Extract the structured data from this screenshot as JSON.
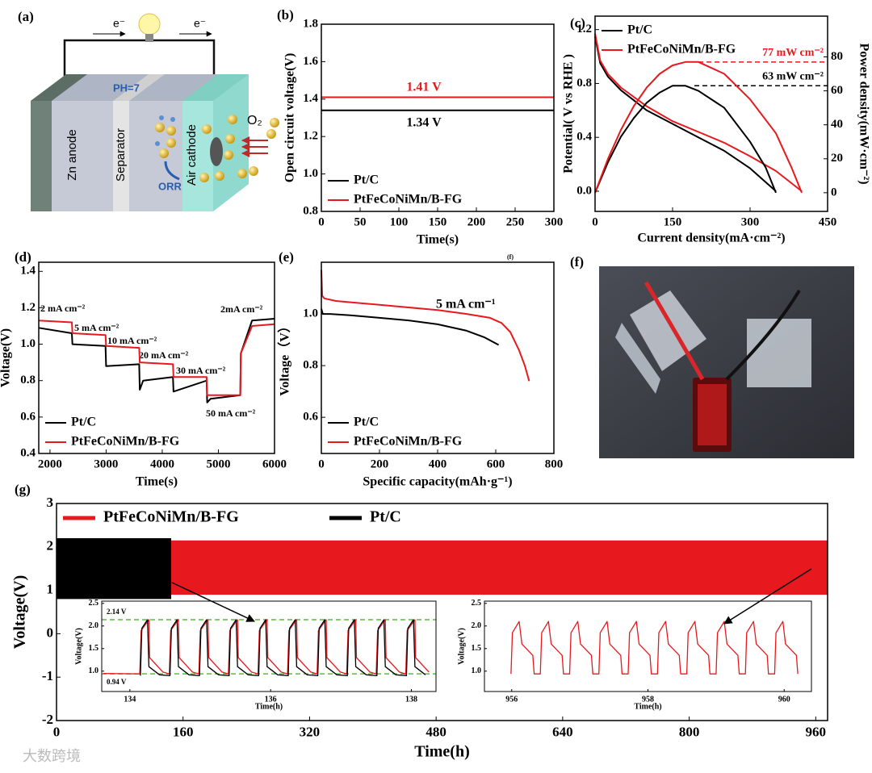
{
  "diagram": {
    "panel_label": "(a)",
    "electron_left": "e⁻",
    "electron_right": "e⁻",
    "ph": "PH=7",
    "anode": "Zn anode",
    "separator": "Separator",
    "cathode": "Air cathode",
    "reaction": "ORR",
    "gas": "O₂"
  },
  "photo": {
    "panel_label": "(f)"
  },
  "watermark": "大数跨境",
  "chart_data": [
    {
      "type": "line",
      "panel_label": "(b)",
      "x_label": "Time(s)",
      "y_label": "Open circuit voltage(V)",
      "footnote": "(f)",
      "xlim": [
        0,
        300
      ],
      "xticks": [
        0,
        50,
        100,
        150,
        200,
        250,
        300
      ],
      "ylim": [
        0.8,
        1.8
      ],
      "yticks": [
        0.8,
        {
          "value": 1,
          "label": "1.0"
        },
        1.2,
        1.4,
        1.6,
        1.8
      ],
      "legend_loc": "lower left",
      "series": [
        {
          "name": "Pt/C",
          "color": "#000000",
          "x": [
            0,
            300
          ],
          "values": [
            1.34,
            1.34
          ]
        },
        {
          "name": "PtFeCoNiMn/B-FG",
          "color": "#e8191e",
          "x": [
            0,
            300
          ],
          "values": [
            1.41,
            1.41
          ]
        }
      ],
      "annotations": [
        {
          "text": "1.41 V",
          "color": "#e8191e"
        },
        {
          "text": "1.34 V",
          "color": "#000000"
        }
      ]
    },
    {
      "type": "line",
      "panel_label": "(c)",
      "x_label": "Current density(mA·cm⁻²)",
      "y_label": "Potential( V vs RHE )",
      "y2_label": "Power density(mW·cm⁻²)",
      "xlim": [
        0,
        450
      ],
      "xticks": [
        0,
        150,
        300,
        450
      ],
      "ylim": [
        -0.15,
        1.3
      ],
      "yticks": [
        {
          "value": 0,
          "label": "0.0"
        },
        0.4,
        0.8,
        1.2
      ],
      "y2lim": [
        -11,
        104
      ],
      "y2ticks": [
        0,
        20,
        40,
        60,
        80
      ],
      "legend_loc": "upper left",
      "series": [
        {
          "name": "Pt/C",
          "color": "#000000",
          "x": [
            0,
            10,
            25,
            50,
            100,
            150,
            200,
            250,
            300,
            350
          ],
          "values": [
            1.15,
            0.95,
            0.85,
            0.75,
            0.6,
            0.5,
            0.4,
            0.3,
            0.17,
            0
          ]
        },
        {
          "name": "PtFeCoNiMn/B-FG",
          "color": "#e8191e",
          "x": [
            0,
            10,
            25,
            50,
            100,
            150,
            200,
            250,
            300,
            350,
            400
          ],
          "values": [
            1.17,
            0.97,
            0.87,
            0.77,
            0.63,
            0.52,
            0.44,
            0.36,
            0.26,
            0.15,
            0
          ]
        },
        {
          "color": "#000000",
          "axis": "y2",
          "x": [
            0,
            25,
            50,
            75,
            100,
            125,
            150,
            175,
            200,
            250,
            300,
            330,
            350
          ],
          "values": [
            0,
            18,
            33,
            44,
            53,
            59,
            63,
            63,
            60,
            50,
            30,
            15,
            0
          ]
        },
        {
          "color": "#e8191e",
          "axis": "y2",
          "x": [
            0,
            25,
            50,
            75,
            100,
            125,
            150,
            175,
            200,
            250,
            300,
            350,
            380,
            400
          ],
          "values": [
            0,
            20,
            37,
            51,
            62,
            70,
            75,
            77,
            77,
            70,
            55,
            35,
            15,
            0
          ]
        }
      ],
      "annotations": [
        {
          "value": 77,
          "label": "77 mW cm⁻²",
          "axis": "y2",
          "color": "#e8191e"
        },
        {
          "value": 63,
          "label": "63 mW cm⁻²",
          "axis": "y2",
          "color": "#000000"
        }
      ]
    },
    {
      "type": "line",
      "panel_label": "(d)",
      "x_label": "Time(s)",
      "y_label": "Voltage(V)",
      "xlim": [
        1800,
        6000
      ],
      "xticks": [
        2000,
        3000,
        4000,
        5000,
        6000
      ],
      "ylim": [
        0.4,
        1.45
      ],
      "yticks": [
        0.4,
        0.6,
        0.8,
        {
          "value": 1,
          "label": "1.0"
        },
        1.2,
        1.4
      ],
      "legend_loc": "lower left",
      "series": [
        {
          "name": "Pt/C",
          "color": "#000000",
          "x": [
            1800,
            2390,
            2400,
            2990,
            3000,
            3590,
            3600,
            3660,
            4190,
            4200,
            4790,
            4800,
            4860,
            5390,
            5400,
            5600,
            6000
          ],
          "values": [
            1.09,
            1.06,
            1.0,
            0.99,
            0.88,
            0.89,
            0.75,
            0.8,
            0.82,
            0.74,
            0.8,
            0.68,
            0.7,
            0.72,
            0.95,
            1.13,
            1.14
          ]
        },
        {
          "name": "PtFeCoNiMn/B-FG",
          "color": "#e8191e",
          "x": [
            1800,
            2390,
            2400,
            2990,
            3000,
            3590,
            3600,
            4190,
            4200,
            4790,
            4800,
            5390,
            5400,
            5600,
            6000
          ],
          "values": [
            1.13,
            1.12,
            1.06,
            1.05,
            0.99,
            0.98,
            0.9,
            0.89,
            0.82,
            0.82,
            0.72,
            0.72,
            0.95,
            1.1,
            1.11
          ]
        }
      ],
      "annotations": [
        "2 mA cm⁻²",
        "5 mA cm⁻²",
        "10 mA cm⁻²",
        "20 mA cm⁻²",
        "30 mA cm⁻²",
        "50 mA cm⁻²",
        "2mA cm⁻²"
      ]
    },
    {
      "type": "line",
      "panel_label": "(e)",
      "x_label": "Specific capacity(mAh·g⁻¹)",
      "y_label": "Voltage（V）",
      "xlim": [
        0,
        800
      ],
      "xticks": [
        0,
        200,
        400,
        600,
        800
      ],
      "ylim": [
        0.46,
        1.2
      ],
      "yticks": [
        0.6,
        0.8,
        {
          "value": 1,
          "label": "1.0"
        }
      ],
      "legend_loc": "lower left",
      "series": [
        {
          "name": "Pt/C",
          "color": "#000000",
          "x": [
            0,
            5,
            30,
            100,
            200,
            300,
            400,
            500,
            560,
            610
          ],
          "values": [
            1.02,
            1.0,
            1.0,
            0.995,
            0.985,
            0.975,
            0.96,
            0.935,
            0.91,
            0.88
          ]
        },
        {
          "name": "PtFeCoNiMn/B-FG",
          "color": "#e8191e",
          "x": [
            0,
            3,
            10,
            50,
            100,
            200,
            300,
            400,
            500,
            580,
            620,
            650,
            680,
            700,
            715
          ],
          "values": [
            1.17,
            1.07,
            1.06,
            1.05,
            1.045,
            1.035,
            1.025,
            1.015,
            1.0,
            0.985,
            0.965,
            0.93,
            0.86,
            0.8,
            0.74
          ]
        }
      ],
      "annotations": [
        "5 mA cm⁻¹"
      ]
    },
    {
      "type": "band",
      "panel_label": "(g)",
      "x_label": "Time(h)",
      "y_label": "Voltage(V)",
      "xlim": [
        0,
        975
      ],
      "xticks": [
        0,
        160,
        320,
        480,
        640,
        800,
        960
      ],
      "ylim": [
        -2,
        3
      ],
      "yticks": [
        -2,
        -1,
        0,
        1,
        2,
        3
      ],
      "legend_loc": "upper left",
      "legend_ncol": 2,
      "series": [
        {
          "name": "PtFeCoNiMn/B-FG",
          "color": "#e8191e",
          "x": [
            0,
            975
          ],
          "low": [
            0.9,
            0.9
          ],
          "high": [
            2.15,
            2.15
          ]
        },
        {
          "name": "Pt/C",
          "color": "#000000",
          "x": [
            0,
            145
          ],
          "low": [
            0.8,
            0.8
          ],
          "high": [
            2.2,
            2.2
          ]
        }
      ]
    },
    {
      "type": "line",
      "x_label": "Time(h)",
      "y_label": "Voltage(V)",
      "xlim": [
        133.6,
        138.35
      ],
      "xticks": [
        134,
        136,
        138
      ],
      "ylim": [
        0.55,
        2.55
      ],
      "yticks": [
        {
          "value": 1,
          "label": "1.0"
        },
        1.5,
        {
          "value": 2,
          "label": "2.0"
        },
        2.5
      ],
      "series": [
        {
          "color": "#e8191e",
          "x": [
            133.62,
            134.14,
            134.16,
            134.27,
            134.28,
            134.47,
            134.56,
            134.58,
            134.69,
            134.7,
            134.89,
            134.98,
            135.0,
            135.11,
            135.12,
            135.31,
            135.4,
            135.42,
            135.53,
            135.54,
            135.73,
            135.82,
            135.84,
            135.95,
            135.96,
            136.15,
            136.24,
            136.26,
            136.37,
            136.38,
            136.57,
            136.66,
            136.68,
            136.79,
            136.8,
            136.99,
            137.08,
            137.1,
            137.21,
            137.22,
            137.41,
            137.5,
            137.52,
            137.63,
            137.64,
            137.83,
            137.92,
            137.94,
            138.05,
            138.06,
            138.25
          ],
          "values": [
            0.95,
            0.94,
            1.9,
            2.14,
            1.3,
            0.98,
            0.94,
            1.9,
            2.14,
            1.3,
            0.98,
            0.94,
            1.9,
            2.14,
            1.3,
            0.98,
            0.94,
            1.9,
            2.14,
            1.3,
            0.98,
            0.94,
            1.9,
            2.14,
            1.3,
            0.98,
            0.94,
            1.9,
            2.14,
            1.3,
            0.98,
            0.94,
            1.9,
            2.14,
            1.3,
            0.98,
            0.94,
            1.9,
            2.14,
            1.3,
            0.98,
            0.94,
            1.9,
            2.14,
            1.3,
            0.98,
            0.94,
            1.9,
            2.14,
            1.3,
            0.98
          ]
        },
        {
          "color": "#000000",
          "x": [
            134.15,
            134.17,
            134.25,
            134.27,
            134.42,
            134.57,
            134.59,
            134.67,
            134.69,
            134.84,
            134.99,
            135.01,
            135.09,
            135.11,
            135.26,
            135.41,
            135.43,
            135.51,
            135.53,
            135.68,
            135.83,
            135.85,
            135.93,
            135.95,
            136.1,
            136.25,
            136.27,
            136.35,
            136.37,
            136.52,
            136.67,
            136.69,
            136.77,
            136.79,
            136.94,
            137.09,
            137.11,
            137.19,
            137.21,
            137.36,
            137.51,
            137.53,
            137.61,
            137.63,
            137.78,
            137.93,
            137.95,
            138.03,
            138.05,
            138.2
          ],
          "values": [
            0.9,
            1.95,
            2.14,
            1.1,
            0.92,
            0.9,
            1.95,
            2.14,
            1.1,
            0.92,
            0.9,
            1.95,
            2.14,
            1.1,
            0.92,
            0.9,
            1.95,
            2.14,
            1.1,
            0.92,
            0.9,
            1.95,
            2.14,
            1.1,
            0.92,
            0.9,
            1.95,
            2.14,
            1.1,
            0.92,
            0.9,
            1.95,
            2.14,
            1.1,
            0.92,
            0.9,
            1.95,
            2.14,
            1.1,
            0.92,
            0.9,
            1.95,
            2.14,
            1.1,
            0.92,
            0.9,
            1.95,
            2.14,
            1.1,
            0.92
          ]
        }
      ],
      "annotations": [
        {
          "value": 2.14,
          "label": "2.14 V",
          "color": "#5dbb3c"
        },
        {
          "value": 0.94,
          "label": "0.94 V",
          "color": "#5dbb3c"
        }
      ]
    },
    {
      "type": "line",
      "x_label": "Time(h)",
      "y_label": "Voltage(V)",
      "xlim": [
        955.6,
        960.4
      ],
      "xticks": [
        956,
        958,
        960
      ],
      "ylim": [
        0.55,
        2.55
      ],
      "yticks": [
        {
          "value": 1,
          "label": "1.0"
        },
        1.5,
        {
          "value": 2,
          "label": "2.0"
        },
        2.5
      ],
      "series": [
        {
          "color": "#e8191e",
          "x": [
            955.99,
            956.01,
            956.11,
            956.15,
            956.31,
            956.33,
            956.42,
            956.44,
            956.54,
            956.58,
            956.74,
            956.76,
            956.85,
            956.87,
            956.97,
            957.01,
            957.17,
            957.19,
            957.28,
            957.3,
            957.4,
            957.44,
            957.6,
            957.62,
            957.71,
            957.73,
            957.83,
            957.87,
            958.03,
            958.05,
            958.14,
            958.16,
            958.26,
            958.3,
            958.46,
            958.48,
            958.57,
            958.59,
            958.69,
            958.73,
            958.89,
            958.91,
            959.0,
            959.02,
            959.12,
            959.16,
            959.32,
            959.34,
            959.43,
            959.45,
            959.55,
            959.59,
            959.75,
            959.77,
            959.86,
            959.88,
            959.98,
            960.02,
            960.18,
            960.2
          ],
          "values": [
            0.94,
            1.85,
            2.1,
            1.6,
            1.35,
            0.94,
            0.94,
            1.85,
            2.1,
            1.6,
            1.35,
            0.94,
            0.94,
            1.85,
            2.1,
            1.6,
            1.35,
            0.94,
            0.94,
            1.85,
            2.1,
            1.6,
            1.35,
            0.94,
            0.94,
            1.85,
            2.1,
            1.6,
            1.35,
            0.94,
            0.94,
            1.85,
            2.1,
            1.6,
            1.35,
            0.94,
            0.94,
            1.85,
            2.1,
            1.6,
            1.35,
            0.94,
            0.94,
            1.85,
            2.1,
            1.6,
            1.35,
            0.94,
            0.94,
            1.85,
            2.1,
            1.6,
            1.35,
            0.94,
            0.94,
            1.85,
            2.1,
            1.6,
            1.35,
            0.94
          ]
        }
      ]
    }
  ]
}
